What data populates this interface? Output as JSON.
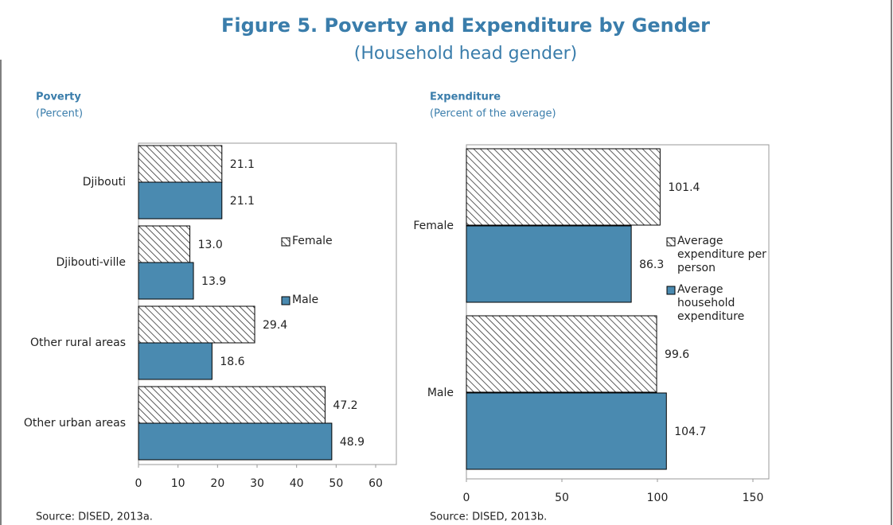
{
  "title": "Figure 5. Poverty and Expenditure by Gender",
  "subtitle": "(Household head gender)",
  "chart_data": [
    {
      "type": "bar",
      "orientation": "horizontal",
      "title": "Poverty",
      "subtitle": "(Percent)",
      "categories": [
        "Djibouti",
        "Djibouti-ville",
        "Other rural areas",
        "Other urban areas"
      ],
      "series": [
        {
          "name": "Female",
          "color": "#ffffff",
          "pattern": "hatch",
          "values": [
            21.1,
            13,
            29.4,
            47.2
          ],
          "value_labels": [
            "21.1",
            "13.0",
            "29.4",
            "47.2"
          ]
        },
        {
          "name": "Male",
          "color": "#4a8ab0",
          "values": [
            21.1,
            13.9,
            18.6,
            48.9
          ]
        }
      ],
      "xlim": [
        0,
        60
      ],
      "xticks": [
        0,
        10,
        20,
        30,
        40,
        50,
        60
      ],
      "grid": false,
      "legend": "right",
      "source": "Source: DISED, 2013a."
    },
    {
      "type": "bar",
      "orientation": "horizontal",
      "title": "Expenditure",
      "subtitle": "(Percent of the average)",
      "categories": [
        "Female",
        "Male"
      ],
      "series": [
        {
          "name": "Average expenditure per person",
          "color": "#ffffff",
          "pattern": "hatch",
          "values": [
            101.4,
            99.6
          ]
        },
        {
          "name": "Average household expenditure",
          "color": "#4a8ab0",
          "values": [
            86.3,
            104.7
          ]
        }
      ],
      "xlim": [
        0,
        150
      ],
      "xticks": [
        0,
        50,
        100,
        150
      ],
      "grid": false,
      "legend": "right",
      "source": "Source: DISED, 2013b."
    }
  ]
}
